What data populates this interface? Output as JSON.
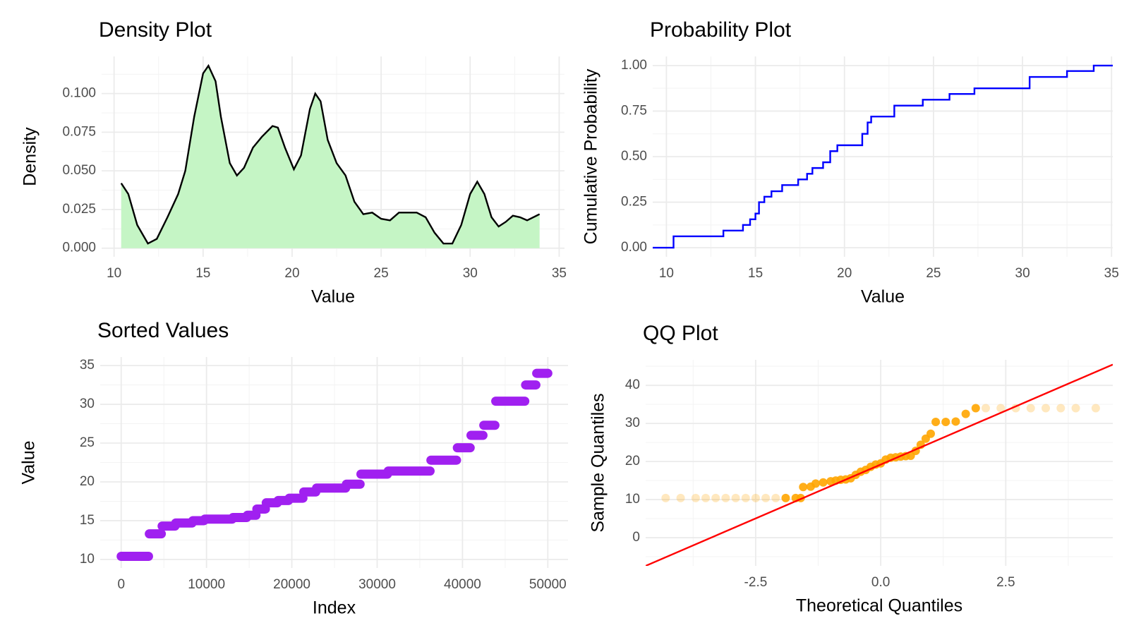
{
  "chart_data": [
    {
      "type": "area",
      "title": "Density Plot",
      "x_label": "Value",
      "y_label": "Density",
      "color": "#c5f5c5",
      "line_color": "#000000",
      "x": [
        10.4,
        10.8,
        11.3,
        11.9,
        12.4,
        13,
        13.6,
        14,
        14.5,
        15,
        15.3,
        15.7,
        16,
        16.5,
        16.9,
        17.3,
        17.8,
        18.3,
        18.9,
        19.2,
        19.6,
        20.1,
        20.5,
        21,
        21.3,
        21.6,
        22,
        22.5,
        23,
        23.5,
        24,
        24.5,
        25,
        25.5,
        26,
        26.5,
        27,
        27.5,
        28,
        28.5,
        29,
        29.5,
        30,
        30.4,
        30.8,
        31.2,
        31.6,
        32,
        32.4,
        32.8,
        33.2,
        33.9
      ],
      "values": [
        0.042,
        0.035,
        0.015,
        0.003,
        0.006,
        0.02,
        0.035,
        0.05,
        0.085,
        0.113,
        0.118,
        0.108,
        0.085,
        0.055,
        0.047,
        0.052,
        0.065,
        0.072,
        0.079,
        0.078,
        0.065,
        0.051,
        0.06,
        0.09,
        0.1,
        0.095,
        0.07,
        0.055,
        0.047,
        0.03,
        0.022,
        0.023,
        0.019,
        0.018,
        0.023,
        0.023,
        0.023,
        0.02,
        0.01,
        0.003,
        0.003,
        0.015,
        0.035,
        0.043,
        0.035,
        0.02,
        0.014,
        0.017,
        0.021,
        0.02,
        0.018,
        0.022
      ],
      "xlim": [
        9.3,
        35.3
      ],
      "xticks": [
        10,
        15,
        20,
        25,
        30,
        35
      ],
      "ylim": [
        -0.0056,
        0.124
      ],
      "yticks": [
        {
          "value": 0,
          "label": "0.000"
        },
        {
          "value": 0.025,
          "label": "0.025"
        },
        {
          "value": 0.05,
          "label": "0.050"
        },
        {
          "value": 0.075,
          "label": "0.075"
        },
        {
          "value": 0.1,
          "label": "0.100"
        }
      ],
      "grid": true,
      "minor_grid": true
    },
    {
      "type": "step",
      "title": "Probability Plot",
      "x_label": "Value",
      "y_label": "Cumulative Probability",
      "color": "#0000ff",
      "x": [
        10.4,
        13.2,
        14.3,
        14.7,
        15.0,
        15.2,
        15.5,
        15.9,
        16.5,
        17.4,
        17.9,
        18.2,
        18.8,
        19.2,
        19.6,
        21.0,
        21.3,
        21.5,
        22.8,
        24.4,
        25.9,
        27.3,
        30.4,
        32.5,
        34.0
      ],
      "values": [
        0.0625,
        0.094,
        0.125,
        0.156,
        0.1875,
        0.25,
        0.28,
        0.31,
        0.344,
        0.375,
        0.406,
        0.4375,
        0.469,
        0.53,
        0.5625,
        0.625,
        0.6875,
        0.72,
        0.78,
        0.8125,
        0.844,
        0.875,
        0.9375,
        0.97,
        1.0
      ],
      "xlim": [
        9.23,
        35.07
      ],
      "xticks": [
        10,
        15,
        20,
        25,
        30,
        35
      ],
      "ylim": [
        -0.05,
        1.05
      ],
      "yticks": [
        {
          "value": 0,
          "label": "0.00"
        },
        {
          "value": 0.25,
          "label": "0.25"
        },
        {
          "value": 0.5,
          "label": "0.50"
        },
        {
          "value": 0.75,
          "label": "0.75"
        },
        {
          "value": 1,
          "label": "1.00"
        }
      ],
      "grid": true,
      "minor_grid": true
    },
    {
      "type": "segments",
      "title": "Sorted Values",
      "x_label": "Index",
      "y_label": "Value",
      "color": "#a020f0",
      "segments": [
        {
          "x": [
            0,
            3200
          ],
          "value": 10.4
        },
        {
          "x": [
            3300,
            4700
          ],
          "value": 13.3
        },
        {
          "x": [
            4800,
            6300
          ],
          "value": 14.3
        },
        {
          "x": [
            6400,
            8300
          ],
          "value": 14.7
        },
        {
          "x": [
            8400,
            9700
          ],
          "value": 15.0
        },
        {
          "x": [
            9800,
            13000
          ],
          "value": 15.2
        },
        {
          "x": [
            13100,
            14700
          ],
          "value": 15.4
        },
        {
          "x": [
            14800,
            15800
          ],
          "value": 15.7
        },
        {
          "x": [
            15900,
            16900
          ],
          "value": 16.5
        },
        {
          "x": [
            17000,
            18300
          ],
          "value": 17.3
        },
        {
          "x": [
            18400,
            19600
          ],
          "value": 17.6
        },
        {
          "x": [
            19700,
            21300
          ],
          "value": 17.9
        },
        {
          "x": [
            21400,
            22800
          ],
          "value": 18.7
        },
        {
          "x": [
            22900,
            26300
          ],
          "value": 19.2
        },
        {
          "x": [
            26400,
            28000
          ],
          "value": 19.7
        },
        {
          "x": [
            28100,
            31200
          ],
          "value": 21.0
        },
        {
          "x": [
            31300,
            36200
          ],
          "value": 21.4
        },
        {
          "x": [
            36300,
            39300
          ],
          "value": 22.8
        },
        {
          "x": [
            39400,
            40900
          ],
          "value": 24.4
        },
        {
          "x": [
            41000,
            42400
          ],
          "value": 26.0
        },
        {
          "x": [
            42500,
            43800
          ],
          "value": 27.3
        },
        {
          "x": [
            43900,
            47300
          ],
          "value": 30.4
        },
        {
          "x": [
            47400,
            48600
          ],
          "value": 32.5
        },
        {
          "x": [
            48700,
            50000
          ],
          "value": 34.0
        }
      ],
      "xlim": [
        -2460,
        52370
      ],
      "xticks": [
        0,
        10000,
        20000,
        30000,
        40000,
        50000
      ],
      "ylim": [
        8.9,
        36.1
      ],
      "yticks": [
        10,
        15,
        20,
        25,
        30,
        35
      ],
      "grid": true,
      "minor_grid": true
    },
    {
      "type": "scatter",
      "title": "QQ Plot",
      "x_label": "Theoretical Quantiles",
      "y_label": "Sample Quantiles",
      "color": "#ffa500",
      "x": [
        -4.3,
        -4.0,
        -3.7,
        -3.5,
        -3.3,
        -3.1,
        -2.9,
        -2.7,
        -2.5,
        -2.3,
        -2.1,
        -1.9,
        -1.7,
        -1.6,
        -1.55,
        -1.4,
        -1.3,
        -1.15,
        -1.0,
        -0.9,
        -0.8,
        -0.7,
        -0.6,
        -0.5,
        -0.4,
        -0.3,
        -0.2,
        -0.1,
        0.0,
        0.1,
        0.2,
        0.3,
        0.4,
        0.5,
        0.6,
        0.7,
        0.8,
        0.9,
        1.0,
        1.1,
        1.3,
        1.5,
        1.7,
        1.9,
        2.1,
        2.4,
        2.7,
        3.0,
        3.3,
        3.6,
        3.9,
        4.3
      ],
      "values": [
        10.4,
        10.4,
        10.4,
        10.4,
        10.4,
        10.4,
        10.4,
        10.4,
        10.4,
        10.4,
        10.4,
        10.4,
        10.4,
        10.4,
        13.3,
        13.4,
        14.2,
        14.5,
        14.8,
        15.0,
        15.2,
        15.3,
        15.6,
        16.5,
        17.3,
        17.8,
        18.6,
        19.2,
        19.5,
        20.5,
        21.0,
        21.1,
        21.3,
        21.4,
        21.5,
        22.8,
        24.4,
        26.0,
        27.3,
        30.4,
        30.4,
        30.5,
        32.5,
        34.0,
        34.0,
        34.0,
        34.0,
        34.0,
        34.0,
        34.0,
        34.0,
        34.0
      ],
      "reference_line": {
        "intercept": 19.2,
        "slope": 5.66,
        "color": "#ff0000"
      },
      "xlim": [
        -4.7,
        4.64
      ],
      "xticks": [
        -2.5,
        {
          "value": 0,
          "label": "0.0"
        },
        2.5
      ],
      "ylim": [
        -7.4,
        46.7
      ],
      "yticks": [
        0,
        10,
        20,
        30,
        40
      ],
      "grid": true,
      "minor_grid": true
    }
  ]
}
